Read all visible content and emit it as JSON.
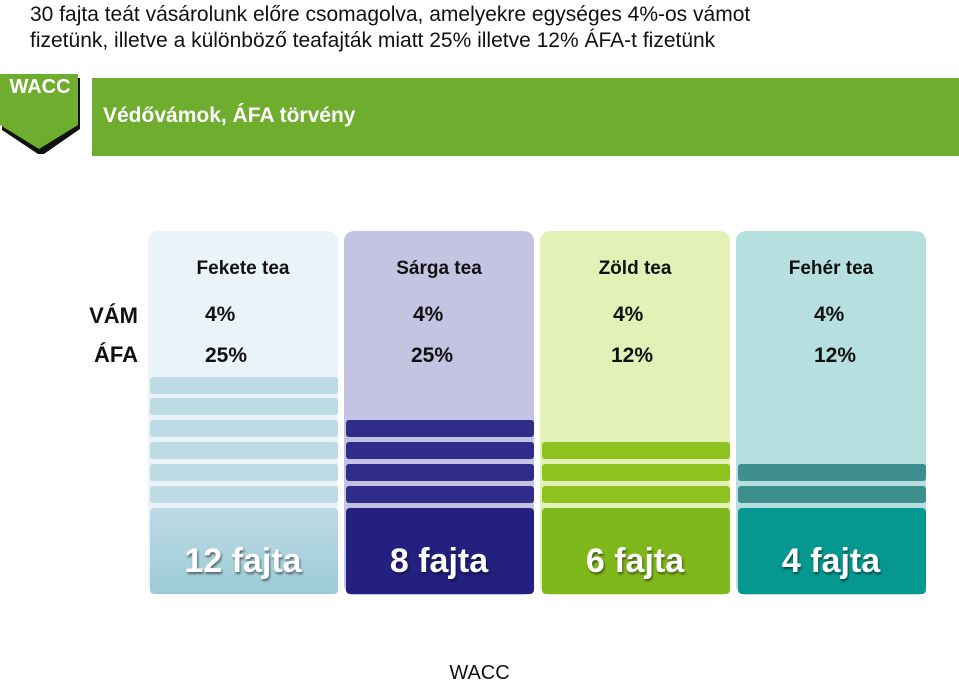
{
  "intro": {
    "line1": "30 fajta teát vásárolunk előre csomagolva, amelyekre egységes 4%-os vámot",
    "line2": "fizetünk, illetve a különböző teafajták miatt 25% illetve 12% ÁFA-t fizetünk"
  },
  "tag": "WACC",
  "band_title": "Védővámok, ÁFA törvény",
  "row_labels": {
    "duty": "VÁM",
    "vat": "ÁFA"
  },
  "columns": [
    {
      "name": "Fekete tea",
      "duty": "4%",
      "vat": "25%",
      "count": "12 fajta"
    },
    {
      "name": "Sárga tea",
      "duty": "4%",
      "vat": "25%",
      "count": "8 fajta"
    },
    {
      "name": "Zöld tea",
      "duty": "4%",
      "vat": "12%",
      "count": "6 fajta"
    },
    {
      "name": "Fehér tea",
      "duty": "4%",
      "vat": "12%",
      "count": "4 fajta"
    }
  ],
  "colors": {
    "green_band": "#6fad2f",
    "black_tea": [
      "#eaf3f7",
      "#bcdbe4",
      "#9ccbd8"
    ],
    "yellow_tea": [
      "#c4c3e2",
      "#2f2c8a",
      "#232080"
    ],
    "green_tea": [
      "#e3f1b7",
      "#8dc21f",
      "#7fb81a"
    ],
    "white_tea": [
      "#b6e0df",
      "#3c8f8d",
      "#059890"
    ]
  },
  "footer": "WACC"
}
